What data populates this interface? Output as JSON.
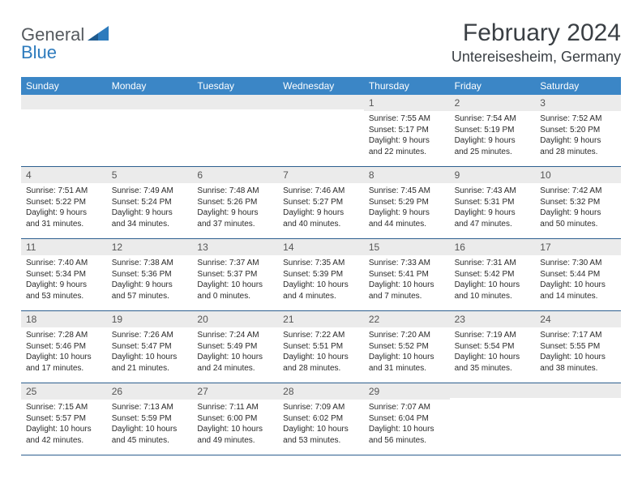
{
  "brand": {
    "general": "General",
    "blue": "Blue"
  },
  "title": "February 2024",
  "location": "Untereisesheim, Germany",
  "weekdays": [
    "Sunday",
    "Monday",
    "Tuesday",
    "Wednesday",
    "Thursday",
    "Friday",
    "Saturday"
  ],
  "colors": {
    "header_bg": "#3b86c6",
    "header_text": "#ffffff",
    "daynum_bg": "#ebebeb",
    "row_border": "#2d5f8f",
    "brand_gray": "#555a5f",
    "brand_blue": "#2d7bbd",
    "title_color": "#3a3f44"
  },
  "weeks": [
    [
      {
        "n": "",
        "sunrise": "",
        "sunset": "",
        "daylight1": "",
        "daylight2": ""
      },
      {
        "n": "",
        "sunrise": "",
        "sunset": "",
        "daylight1": "",
        "daylight2": ""
      },
      {
        "n": "",
        "sunrise": "",
        "sunset": "",
        "daylight1": "",
        "daylight2": ""
      },
      {
        "n": "",
        "sunrise": "",
        "sunset": "",
        "daylight1": "",
        "daylight2": ""
      },
      {
        "n": "1",
        "sunrise": "Sunrise: 7:55 AM",
        "sunset": "Sunset: 5:17 PM",
        "daylight1": "Daylight: 9 hours",
        "daylight2": "and 22 minutes."
      },
      {
        "n": "2",
        "sunrise": "Sunrise: 7:54 AM",
        "sunset": "Sunset: 5:19 PM",
        "daylight1": "Daylight: 9 hours",
        "daylight2": "and 25 minutes."
      },
      {
        "n": "3",
        "sunrise": "Sunrise: 7:52 AM",
        "sunset": "Sunset: 5:20 PM",
        "daylight1": "Daylight: 9 hours",
        "daylight2": "and 28 minutes."
      }
    ],
    [
      {
        "n": "4",
        "sunrise": "Sunrise: 7:51 AM",
        "sunset": "Sunset: 5:22 PM",
        "daylight1": "Daylight: 9 hours",
        "daylight2": "and 31 minutes."
      },
      {
        "n": "5",
        "sunrise": "Sunrise: 7:49 AM",
        "sunset": "Sunset: 5:24 PM",
        "daylight1": "Daylight: 9 hours",
        "daylight2": "and 34 minutes."
      },
      {
        "n": "6",
        "sunrise": "Sunrise: 7:48 AM",
        "sunset": "Sunset: 5:26 PM",
        "daylight1": "Daylight: 9 hours",
        "daylight2": "and 37 minutes."
      },
      {
        "n": "7",
        "sunrise": "Sunrise: 7:46 AM",
        "sunset": "Sunset: 5:27 PM",
        "daylight1": "Daylight: 9 hours",
        "daylight2": "and 40 minutes."
      },
      {
        "n": "8",
        "sunrise": "Sunrise: 7:45 AM",
        "sunset": "Sunset: 5:29 PM",
        "daylight1": "Daylight: 9 hours",
        "daylight2": "and 44 minutes."
      },
      {
        "n": "9",
        "sunrise": "Sunrise: 7:43 AM",
        "sunset": "Sunset: 5:31 PM",
        "daylight1": "Daylight: 9 hours",
        "daylight2": "and 47 minutes."
      },
      {
        "n": "10",
        "sunrise": "Sunrise: 7:42 AM",
        "sunset": "Sunset: 5:32 PM",
        "daylight1": "Daylight: 9 hours",
        "daylight2": "and 50 minutes."
      }
    ],
    [
      {
        "n": "11",
        "sunrise": "Sunrise: 7:40 AM",
        "sunset": "Sunset: 5:34 PM",
        "daylight1": "Daylight: 9 hours",
        "daylight2": "and 53 minutes."
      },
      {
        "n": "12",
        "sunrise": "Sunrise: 7:38 AM",
        "sunset": "Sunset: 5:36 PM",
        "daylight1": "Daylight: 9 hours",
        "daylight2": "and 57 minutes."
      },
      {
        "n": "13",
        "sunrise": "Sunrise: 7:37 AM",
        "sunset": "Sunset: 5:37 PM",
        "daylight1": "Daylight: 10 hours",
        "daylight2": "and 0 minutes."
      },
      {
        "n": "14",
        "sunrise": "Sunrise: 7:35 AM",
        "sunset": "Sunset: 5:39 PM",
        "daylight1": "Daylight: 10 hours",
        "daylight2": "and 4 minutes."
      },
      {
        "n": "15",
        "sunrise": "Sunrise: 7:33 AM",
        "sunset": "Sunset: 5:41 PM",
        "daylight1": "Daylight: 10 hours",
        "daylight2": "and 7 minutes."
      },
      {
        "n": "16",
        "sunrise": "Sunrise: 7:31 AM",
        "sunset": "Sunset: 5:42 PM",
        "daylight1": "Daylight: 10 hours",
        "daylight2": "and 10 minutes."
      },
      {
        "n": "17",
        "sunrise": "Sunrise: 7:30 AM",
        "sunset": "Sunset: 5:44 PM",
        "daylight1": "Daylight: 10 hours",
        "daylight2": "and 14 minutes."
      }
    ],
    [
      {
        "n": "18",
        "sunrise": "Sunrise: 7:28 AM",
        "sunset": "Sunset: 5:46 PM",
        "daylight1": "Daylight: 10 hours",
        "daylight2": "and 17 minutes."
      },
      {
        "n": "19",
        "sunrise": "Sunrise: 7:26 AM",
        "sunset": "Sunset: 5:47 PM",
        "daylight1": "Daylight: 10 hours",
        "daylight2": "and 21 minutes."
      },
      {
        "n": "20",
        "sunrise": "Sunrise: 7:24 AM",
        "sunset": "Sunset: 5:49 PM",
        "daylight1": "Daylight: 10 hours",
        "daylight2": "and 24 minutes."
      },
      {
        "n": "21",
        "sunrise": "Sunrise: 7:22 AM",
        "sunset": "Sunset: 5:51 PM",
        "daylight1": "Daylight: 10 hours",
        "daylight2": "and 28 minutes."
      },
      {
        "n": "22",
        "sunrise": "Sunrise: 7:20 AM",
        "sunset": "Sunset: 5:52 PM",
        "daylight1": "Daylight: 10 hours",
        "daylight2": "and 31 minutes."
      },
      {
        "n": "23",
        "sunrise": "Sunrise: 7:19 AM",
        "sunset": "Sunset: 5:54 PM",
        "daylight1": "Daylight: 10 hours",
        "daylight2": "and 35 minutes."
      },
      {
        "n": "24",
        "sunrise": "Sunrise: 7:17 AM",
        "sunset": "Sunset: 5:55 PM",
        "daylight1": "Daylight: 10 hours",
        "daylight2": "and 38 minutes."
      }
    ],
    [
      {
        "n": "25",
        "sunrise": "Sunrise: 7:15 AM",
        "sunset": "Sunset: 5:57 PM",
        "daylight1": "Daylight: 10 hours",
        "daylight2": "and 42 minutes."
      },
      {
        "n": "26",
        "sunrise": "Sunrise: 7:13 AM",
        "sunset": "Sunset: 5:59 PM",
        "daylight1": "Daylight: 10 hours",
        "daylight2": "and 45 minutes."
      },
      {
        "n": "27",
        "sunrise": "Sunrise: 7:11 AM",
        "sunset": "Sunset: 6:00 PM",
        "daylight1": "Daylight: 10 hours",
        "daylight2": "and 49 minutes."
      },
      {
        "n": "28",
        "sunrise": "Sunrise: 7:09 AM",
        "sunset": "Sunset: 6:02 PM",
        "daylight1": "Daylight: 10 hours",
        "daylight2": "and 53 minutes."
      },
      {
        "n": "29",
        "sunrise": "Sunrise: 7:07 AM",
        "sunset": "Sunset: 6:04 PM",
        "daylight1": "Daylight: 10 hours",
        "daylight2": "and 56 minutes."
      },
      {
        "n": "",
        "sunrise": "",
        "sunset": "",
        "daylight1": "",
        "daylight2": ""
      },
      {
        "n": "",
        "sunrise": "",
        "sunset": "",
        "daylight1": "",
        "daylight2": ""
      }
    ]
  ]
}
